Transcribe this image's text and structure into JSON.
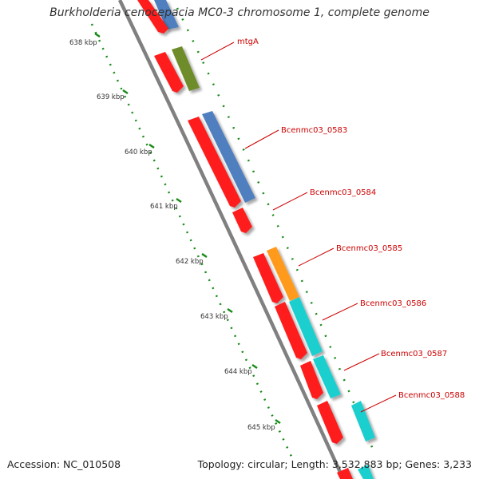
{
  "title": "Burkholderia cenocepacia MC0-3 chromosome 1, complete genome",
  "footer": {
    "accession": "Accession: NC_010508",
    "summary": "Topology: circular; Length: 3,532,883 bp; Genes: 3,233"
  },
  "colors": {
    "backbone": "#808080",
    "red": "#ff1a1a",
    "blue": "#4f7fbf",
    "olive": "#6e8c2a",
    "orange": "#ff9a1a",
    "cyan": "#1ecfcf",
    "tick": "#1a8a1a",
    "label": "#cc0000"
  },
  "scale": {
    "ticks": [
      "638 kbp",
      "639 kbp",
      "640 kbp",
      "641 kbp",
      "642 kbp",
      "643 kbp",
      "644 kbp",
      "645 kbp"
    ]
  },
  "genes": [
    "mtgA",
    "Bcenmc03_0583",
    "Bcenmc03_0584",
    "Bcenmc03_0585",
    "Bcenmc03_0586",
    "Bcenmc03_0587",
    "Bcenmc03_0588"
  ]
}
